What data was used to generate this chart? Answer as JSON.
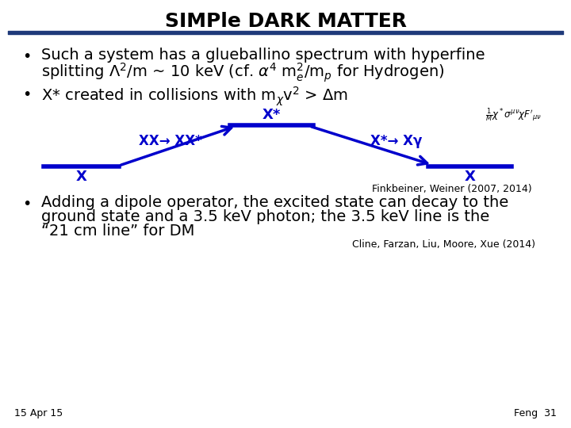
{
  "title": "SIMPle DARK MATTER",
  "title_fontsize": 18,
  "title_bar_color": "#1F3A7A",
  "bg_color": "#ffffff",
  "text_color": "#000000",
  "blue_color": "#0000CC",
  "bullet_fontsize": 14,
  "ref1": "Finkbeiner, Weiner (2007, 2014)",
  "ref2": "Cline, Farzan, Liu, Moore, Xue (2014)",
  "footer_left": "15 Apr 15",
  "footer_right": "Feng  31"
}
